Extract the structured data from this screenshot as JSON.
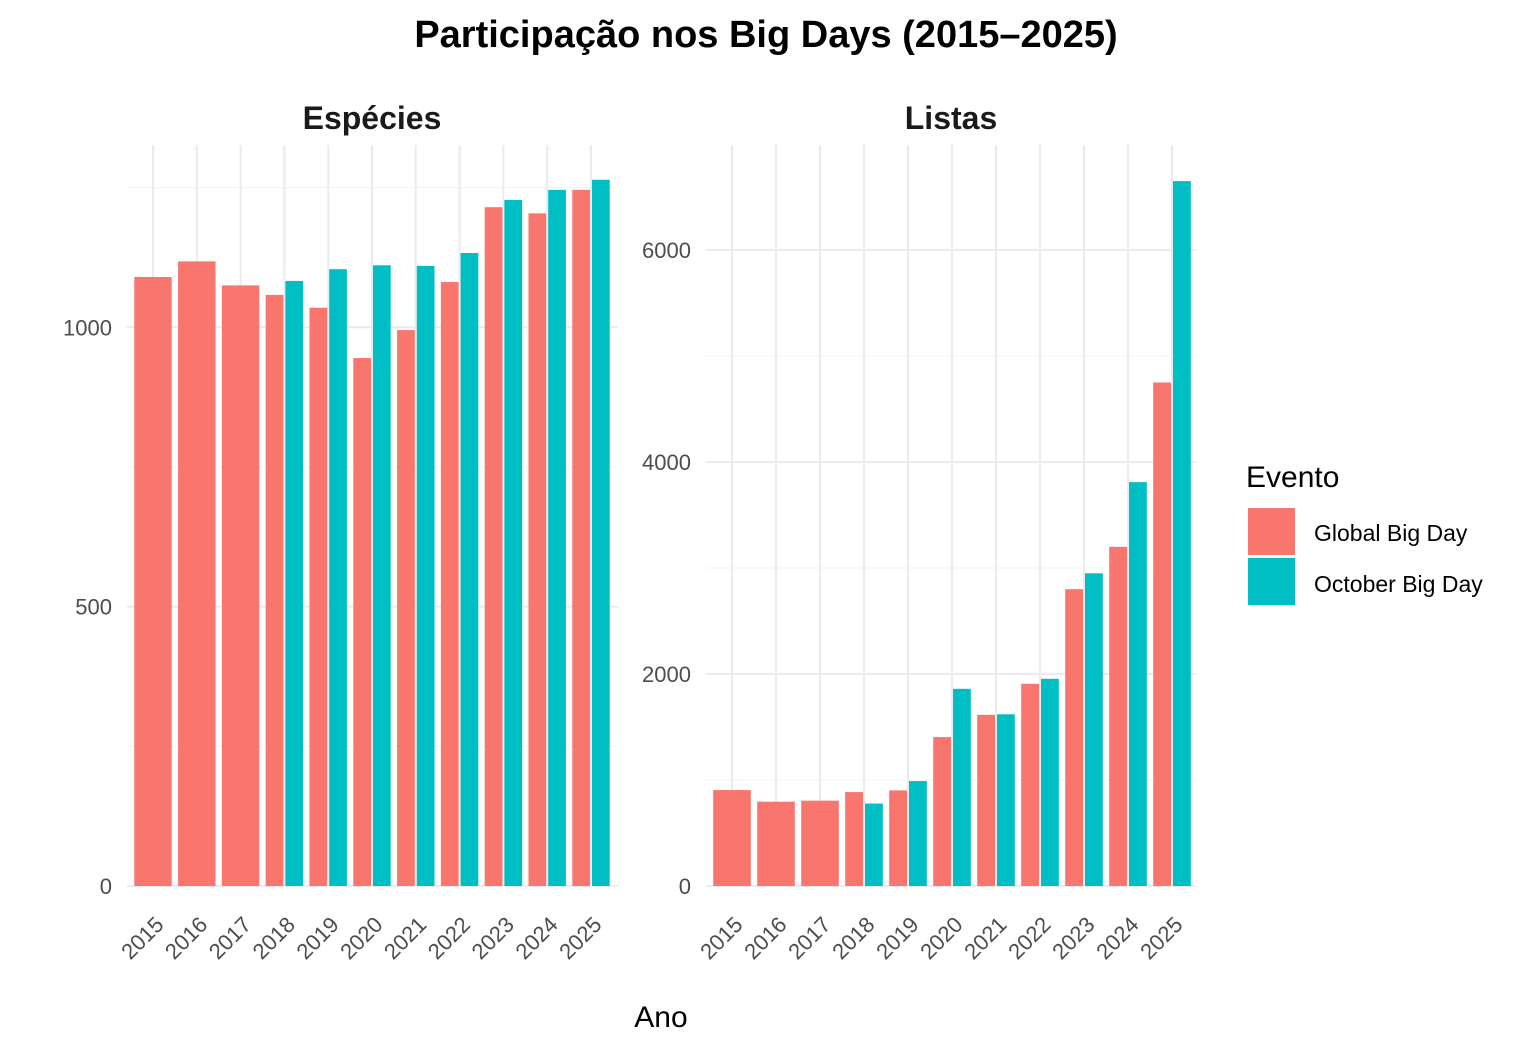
{
  "chart_data": {
    "type": "bar",
    "title": "Participação nos Big Days (2015–2025)",
    "xlabel": "Ano",
    "ylabel": "",
    "categories": [
      "2015",
      "2016",
      "2017",
      "2018",
      "2019",
      "2020",
      "2021",
      "2022",
      "2023",
      "2024",
      "2025"
    ],
    "legend": {
      "title": "Evento",
      "placement": "right"
    },
    "series_colors": {
      "Global Big Day": "#F8766D",
      "October Big Day": "#00BFC4"
    },
    "grid": true,
    "panels": [
      {
        "title": "Espécies",
        "ylim": [
          0,
          1330
        ],
        "yticks": [
          0,
          500,
          1000
        ],
        "series": [
          {
            "name": "Global Big Day",
            "values": [
              1090,
              1118,
              1075,
              1058,
              1035,
              945,
              995,
              1081,
              1215,
              1204,
              1246
            ]
          },
          {
            "name": "October Big Day",
            "values": [
              null,
              null,
              null,
              1083,
              1104,
              1111,
              1110,
              1133,
              1228,
              1246,
              1264
            ]
          }
        ]
      },
      {
        "title": "Listas",
        "ylim": [
          0,
          6700
        ],
        "yticks": [
          0,
          2000,
          4000,
          6000
        ],
        "series": [
          {
            "name": "Global Big Day",
            "values": [
              905,
              795,
              805,
              886,
              902,
              1405,
              1615,
              1908,
              2800,
              3200,
              4750
            ]
          },
          {
            "name": "October Big Day",
            "values": [
              null,
              null,
              null,
              778,
              990,
              1860,
              1620,
              1955,
              2950,
              3810,
              6650
            ]
          }
        ]
      }
    ]
  }
}
